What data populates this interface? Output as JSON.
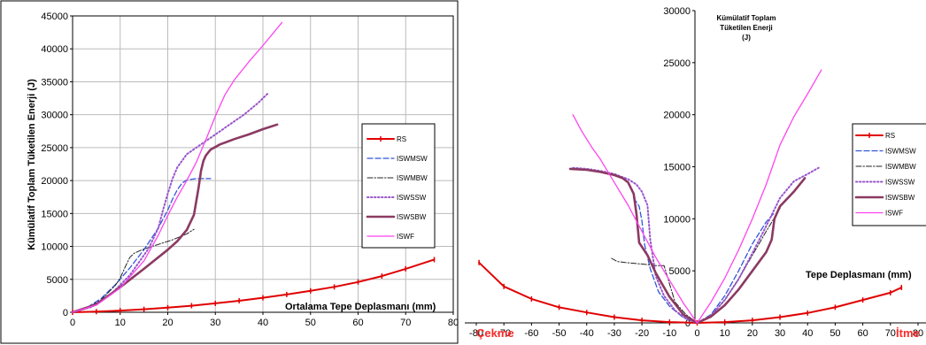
{
  "colors": {
    "RS": "#e00000",
    "ISWMSW": "#3355dd",
    "ISWMBW": "#222222",
    "ISWSSW": "#9955cc",
    "ISWSBW": "#8b3a62",
    "ISWF": "#ff44ee",
    "grid": "#bbbbbb",
    "annot": "#ff2a2a"
  },
  "chart_data": [
    {
      "type": "line",
      "title": "",
      "xlabel": "Ortalama Tepe Deplasmanı (mm)",
      "ylabel": "Kümülatif Toplam Tüketilen Enerji (J)",
      "xlim": [
        0,
        80
      ],
      "ylim": [
        0,
        45000
      ],
      "xticks": [
        0,
        10,
        20,
        30,
        40,
        50,
        60,
        70,
        80
      ],
      "yticks": [
        0,
        5000,
        10000,
        15000,
        20000,
        25000,
        30000,
        35000,
        40000,
        45000
      ],
      "grid": true,
      "legend_position": "right",
      "series": [
        {
          "name": "RS",
          "style": "solid-marker",
          "x": [
            0,
            5,
            10,
            15,
            20,
            25,
            30,
            35,
            40,
            45,
            50,
            55,
            60,
            65,
            70,
            76
          ],
          "y": [
            0,
            100,
            250,
            450,
            700,
            1000,
            1350,
            1750,
            2200,
            2700,
            3250,
            3850,
            4600,
            5500,
            6600,
            8000
          ]
        },
        {
          "name": "ISWMSW",
          "style": "dash",
          "x": [
            0,
            3,
            6,
            9,
            12,
            15,
            18,
            20,
            21,
            22,
            23,
            24,
            26,
            29
          ],
          "y": [
            0,
            700,
            2100,
            4200,
            6700,
            9500,
            12800,
            15500,
            17200,
            18600,
            19600,
            20100,
            20300,
            20300
          ]
        },
        {
          "name": "ISWMBW",
          "style": "dashdot",
          "x": [
            0,
            3,
            6,
            9,
            10,
            11,
            12,
            13,
            15,
            18,
            21,
            24,
            25.5
          ],
          "y": [
            0,
            600,
            1900,
            4100,
            5200,
            6800,
            8300,
            9000,
            9600,
            10300,
            11000,
            11900,
            12600
          ]
        },
        {
          "name": "ISWSSW",
          "style": "dot",
          "x": [
            0,
            4,
            8,
            12,
            16,
            18,
            19,
            20,
            21,
            22,
            24,
            27,
            30,
            33,
            36,
            39,
            41
          ],
          "y": [
            0,
            800,
            2700,
            5600,
            9700,
            12800,
            15500,
            18000,
            20300,
            22000,
            24000,
            25500,
            27000,
            28500,
            30000,
            31800,
            33200
          ]
        },
        {
          "name": "ISWSBW",
          "style": "thick",
          "x": [
            0,
            5,
            10,
            15,
            20,
            22,
            24,
            25.5,
            26.5,
            27,
            27.5,
            28,
            29,
            31,
            34,
            37,
            40,
            43
          ],
          "y": [
            0,
            1200,
            3800,
            6600,
            9500,
            10800,
            12500,
            14800,
            19000,
            21500,
            23000,
            23800,
            24700,
            25500,
            26300,
            27000,
            27800,
            28500
          ]
        },
        {
          "name": "ISWF",
          "style": "solid",
          "x": [
            0,
            5,
            10,
            15,
            18,
            20,
            22,
            24,
            26,
            28,
            30,
            32,
            34,
            37,
            40,
            44
          ],
          "y": [
            0,
            1100,
            3700,
            7800,
            11700,
            14700,
            17500,
            20000,
            22800,
            26200,
            29800,
            33000,
            35300,
            38000,
            40500,
            44000
          ]
        }
      ]
    },
    {
      "type": "line",
      "title": "Kümülatif Toplam Tüketilen Enerji (J)",
      "title_lines": [
        "Kümülatif Toplam",
        "Tüketilen Enerji",
        "(J)"
      ],
      "xlabel": "Tepe Deplasmanı (mm)",
      "ylabel": "",
      "left_annotation": "Çekme",
      "right_annotation": "İtme",
      "xlim": [
        -80,
        80
      ],
      "ylim": [
        0,
        30000
      ],
      "xticks": [
        -80,
        -70,
        -60,
        -50,
        -40,
        -30,
        -20,
        -10,
        0,
        10,
        20,
        30,
        40,
        50,
        60,
        70,
        80
      ],
      "yticks": [
        0,
        5000,
        10000,
        15000,
        20000,
        25000,
        30000
      ],
      "grid": false,
      "legend_position": "right",
      "series": [
        {
          "name": "RS",
          "style": "solid-marker",
          "x": [
            -79,
            -70,
            -60,
            -50,
            -40,
            -30,
            -20,
            -10,
            0,
            10,
            20,
            30,
            40,
            50,
            60,
            70,
            74
          ],
          "y": [
            5800,
            3500,
            2300,
            1500,
            1000,
            550,
            250,
            80,
            0,
            80,
            250,
            550,
            950,
            1500,
            2200,
            2900,
            3400
          ]
        },
        {
          "name": "ISWMSW",
          "style": "dash",
          "x": [
            -23,
            -21,
            -20,
            -19,
            -17,
            -14,
            -10,
            -5,
            0,
            5,
            10,
            15,
            20,
            25,
            28
          ],
          "y": [
            12000,
            11200,
            9800,
            7500,
            5200,
            3000,
            1600,
            500,
            0,
            800,
            2600,
            5000,
            7600,
            9700,
            10600
          ]
        },
        {
          "name": "ISWMBW",
          "style": "dashdot",
          "x": [
            -31,
            -29,
            -26,
            -22,
            -18,
            -15,
            -12,
            -8,
            -4,
            0,
            5,
            10,
            15,
            20,
            25,
            30
          ],
          "y": [
            6200,
            5900,
            5800,
            5700,
            5600,
            5500,
            5500,
            2000,
            800,
            0,
            700,
            2200,
            4200,
            6500,
            8800,
            11000
          ]
        },
        {
          "name": "ISWSSW",
          "style": "dot",
          "x": [
            -45,
            -40,
            -35,
            -30,
            -25,
            -22,
            -20,
            -18,
            -17,
            -15,
            -12,
            -8,
            -4,
            0,
            5,
            10,
            15,
            20,
            25,
            30,
            35,
            40,
            44
          ],
          "y": [
            14900,
            14800,
            14600,
            14300,
            13800,
            13300,
            12600,
            11300,
            8000,
            4500,
            2600,
            1200,
            400,
            0,
            700,
            2200,
            4200,
            6700,
            9300,
            12000,
            13600,
            14300,
            14900
          ]
        },
        {
          "name": "ISWSBW",
          "style": "thick",
          "x": [
            -46,
            -40,
            -35,
            -30,
            -27,
            -25,
            -23,
            -22,
            -21,
            -18,
            -15,
            -10,
            -5,
            0,
            5,
            10,
            15,
            20,
            25,
            27,
            28,
            30,
            35,
            39
          ],
          "y": [
            14800,
            14700,
            14500,
            14200,
            13900,
            13500,
            12400,
            10500,
            7700,
            6500,
            4800,
            2500,
            800,
            0,
            600,
            1700,
            3200,
            5000,
            6800,
            8000,
            10000,
            11200,
            12600,
            13900
          ]
        },
        {
          "name": "ISWF",
          "style": "solid",
          "x": [
            -45,
            -42,
            -38,
            -35,
            -30,
            -25,
            -20,
            -15,
            -10,
            -5,
            0,
            5,
            10,
            15,
            20,
            25,
            30,
            35,
            40,
            45
          ],
          "y": [
            20000,
            18500,
            16800,
            15700,
            13500,
            11300,
            8800,
            6300,
            4100,
            1900,
            0,
            2000,
            4300,
            7000,
            10000,
            13300,
            17100,
            19800,
            22000,
            24300
          ]
        }
      ]
    }
  ]
}
